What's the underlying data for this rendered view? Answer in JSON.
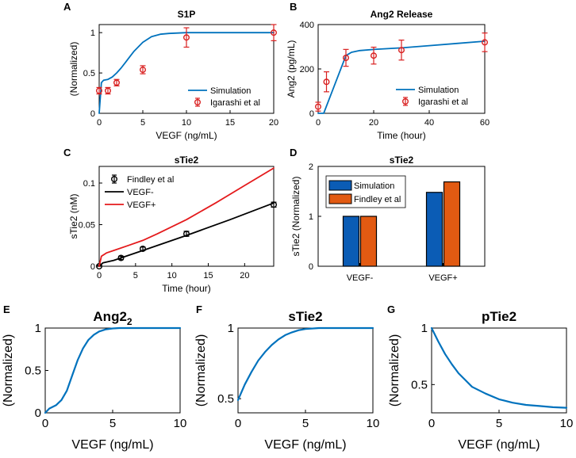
{
  "chart_data": [
    {
      "id": "A",
      "type": "line+errorbar",
      "title": "S1P",
      "xlabel": "VEGF (ng/mL)",
      "ylabel": "(Normalized)",
      "xlim": [
        0,
        20
      ],
      "ylim": [
        0,
        1.1
      ],
      "xticks": [
        0,
        5,
        10,
        15,
        20
      ],
      "yticks": [
        0,
        0.5,
        1
      ],
      "xtick_labels": [
        "0",
        "5",
        "10",
        "15",
        "20"
      ],
      "ytick_labels": [
        "0",
        "0.5",
        "1"
      ],
      "legend_position": "bottom-right",
      "series": [
        {
          "name": "Simulation",
          "kind": "line",
          "color": "#0072BD",
          "x": [
            0,
            0.25,
            0.5,
            1,
            1.5,
            2,
            2.5,
            3,
            3.5,
            4,
            5,
            6,
            7,
            8,
            9,
            10,
            12,
            15,
            20
          ],
          "y": [
            0,
            0.38,
            0.41,
            0.42,
            0.45,
            0.5,
            0.56,
            0.63,
            0.7,
            0.77,
            0.88,
            0.95,
            0.98,
            0.99,
            0.995,
            1.0,
            1.0,
            1.0,
            1.0
          ]
        },
        {
          "name": "Igarashi et al",
          "kind": "errorbar",
          "color": "#D92020",
          "x": [
            0,
            1,
            2,
            5,
            10,
            20
          ],
          "y": [
            0.28,
            0.28,
            0.38,
            0.54,
            0.94,
            1.0
          ],
          "err": [
            0.04,
            0.04,
            0.04,
            0.05,
            0.12,
            0.1
          ]
        }
      ]
    },
    {
      "id": "B",
      "type": "line+errorbar",
      "title": "Ang2 Release",
      "xlabel": "Time (hour)",
      "ylabel": "Ang2 (pg/mL)",
      "xlim": [
        0,
        60
      ],
      "ylim": [
        0,
        400
      ],
      "xticks": [
        0,
        20,
        40,
        60
      ],
      "yticks": [
        0,
        200,
        400
      ],
      "xtick_labels": [
        "0",
        "20",
        "40",
        "60"
      ],
      "ytick_labels": [
        "0",
        "200",
        "400"
      ],
      "legend_position": "bottom-right",
      "series": [
        {
          "name": "Simulation",
          "kind": "line",
          "color": "#0072BD",
          "x": [
            0,
            2,
            10,
            12,
            15,
            20,
            30,
            40,
            50,
            60
          ],
          "y": [
            0,
            0,
            260,
            275,
            283,
            288,
            295,
            305,
            315,
            325
          ]
        },
        {
          "name": "Igarashi et al",
          "kind": "errorbar",
          "color": "#D92020",
          "x": [
            0,
            3,
            10,
            20,
            30,
            60
          ],
          "y": [
            30,
            142,
            250,
            260,
            285,
            320
          ],
          "err": [
            20,
            45,
            38,
            38,
            45,
            42
          ]
        }
      ]
    },
    {
      "id": "C",
      "type": "line+errorbar",
      "title": "sTie2",
      "xlabel": "Time (hour)",
      "ylabel": "sTie2 (nM)",
      "xlim": [
        0,
        24
      ],
      "ylim": [
        0,
        0.12
      ],
      "xticks": [
        0,
        5,
        10,
        15,
        20
      ],
      "yticks": [
        0,
        0.05,
        0.1
      ],
      "xtick_labels": [
        "0",
        "5",
        "10",
        "15",
        "20"
      ],
      "ytick_labels": [
        "0",
        "0.05",
        "0.1"
      ],
      "legend_position": "top-left",
      "series": [
        {
          "name": "Findley et al",
          "kind": "errorbar",
          "color": "#000000",
          "x": [
            0,
            3,
            6,
            12,
            24
          ],
          "y": [
            0,
            0.01,
            0.021,
            0.039,
            0.074
          ],
          "err": [
            0.001,
            0.002,
            0.002,
            0.003,
            0.003
          ]
        },
        {
          "name": "VEGF-",
          "kind": "line",
          "color": "#000000",
          "x": [
            0,
            0.5,
            2,
            6,
            12,
            18,
            24
          ],
          "y": [
            0,
            0.004,
            0.007,
            0.019,
            0.037,
            0.056,
            0.076
          ]
        },
        {
          "name": "VEGF+",
          "kind": "line",
          "color": "#E41A1C",
          "x": [
            0,
            0.3,
            1,
            2,
            4,
            6,
            8,
            12,
            16,
            20,
            24
          ],
          "y": [
            0,
            0.012,
            0.016,
            0.019,
            0.025,
            0.031,
            0.039,
            0.056,
            0.076,
            0.097,
            0.118
          ]
        }
      ]
    },
    {
      "id": "D",
      "type": "bar",
      "title": "sTie2",
      "ylabel": "sTie2 (Normalized)",
      "categories": [
        "VEGF-",
        "VEGF+"
      ],
      "ylim": [
        0,
        2
      ],
      "yticks": [
        0,
        1,
        2
      ],
      "ytick_labels": [
        "0",
        "1",
        "2"
      ],
      "legend_position": "top-left",
      "series": [
        {
          "name": "Simulation",
          "color": "#0B5CB5",
          "values": [
            1.0,
            1.48
          ]
        },
        {
          "name": "Findley et al",
          "color": "#E25A12",
          "values": [
            1.0,
            1.69
          ]
        }
      ]
    },
    {
      "id": "E",
      "type": "line",
      "title": "Ang2",
      "title_sub": "2",
      "xlabel": "VEGF (ng/mL)",
      "ylabel": "(Normalized)",
      "xlim": [
        0,
        10
      ],
      "ylim": [
        0,
        1
      ],
      "xticks": [
        0,
        5,
        10
      ],
      "yticks": [
        0,
        0.5,
        1
      ],
      "xtick_labels": [
        "0",
        "5",
        "10"
      ],
      "ytick_labels": [
        "0",
        "0.5",
        "1"
      ],
      "series": [
        {
          "name": "Ang2_2",
          "color": "#0072BD",
          "x": [
            0,
            0.3,
            0.8,
            1.2,
            1.6,
            2.0,
            2.4,
            2.8,
            3.2,
            3.6,
            4.0,
            4.5,
            5.0,
            5.5,
            6.0,
            7.0,
            8.0,
            10.0
          ],
          "y": [
            0,
            0.05,
            0.09,
            0.15,
            0.26,
            0.44,
            0.62,
            0.76,
            0.86,
            0.92,
            0.96,
            0.985,
            0.995,
            1.0,
            1.0,
            1.0,
            1.0,
            1.0
          ]
        }
      ]
    },
    {
      "id": "F",
      "type": "line",
      "title": "sTie2",
      "xlabel": "VEGF (ng/mL)",
      "ylabel": "(Normalized)",
      "xlim": [
        0,
        10
      ],
      "ylim": [
        0.4,
        1
      ],
      "xticks": [
        0,
        5,
        10
      ],
      "yticks": [
        0.5,
        1
      ],
      "xtick_labels": [
        "0",
        "5",
        "10"
      ],
      "ytick_labels": [
        "0.5",
        "1"
      ],
      "series": [
        {
          "name": "sTie2",
          "color": "#0072BD",
          "x": [
            0,
            0.5,
            1,
            1.5,
            2,
            2.5,
            3,
            3.5,
            4,
            4.5,
            5,
            6,
            7,
            8,
            10
          ],
          "y": [
            0.49,
            0.6,
            0.69,
            0.77,
            0.83,
            0.88,
            0.92,
            0.95,
            0.97,
            0.985,
            0.993,
            1.0,
            1.0,
            1.0,
            1.0
          ]
        }
      ]
    },
    {
      "id": "G",
      "type": "line",
      "title": "pTie2",
      "xlabel": "VEGF (ng/mL)",
      "ylabel": "(Normalized)",
      "xlim": [
        0,
        10
      ],
      "ylim": [
        0.25,
        1.0
      ],
      "xticks": [
        0,
        5,
        10
      ],
      "yticks": [
        0.5,
        1
      ],
      "xtick_labels": [
        "0",
        "5",
        "10"
      ],
      "ytick_labels": [
        "0.5",
        "1"
      ],
      "series": [
        {
          "name": "pTie2",
          "color": "#0072BD",
          "x": [
            0,
            0.5,
            1,
            1.5,
            2,
            2.5,
            3,
            4,
            5,
            6,
            7,
            8,
            9,
            10
          ],
          "y": [
            1.0,
            0.88,
            0.77,
            0.68,
            0.6,
            0.54,
            0.48,
            0.42,
            0.37,
            0.34,
            0.32,
            0.31,
            0.3,
            0.295
          ]
        }
      ]
    }
  ]
}
